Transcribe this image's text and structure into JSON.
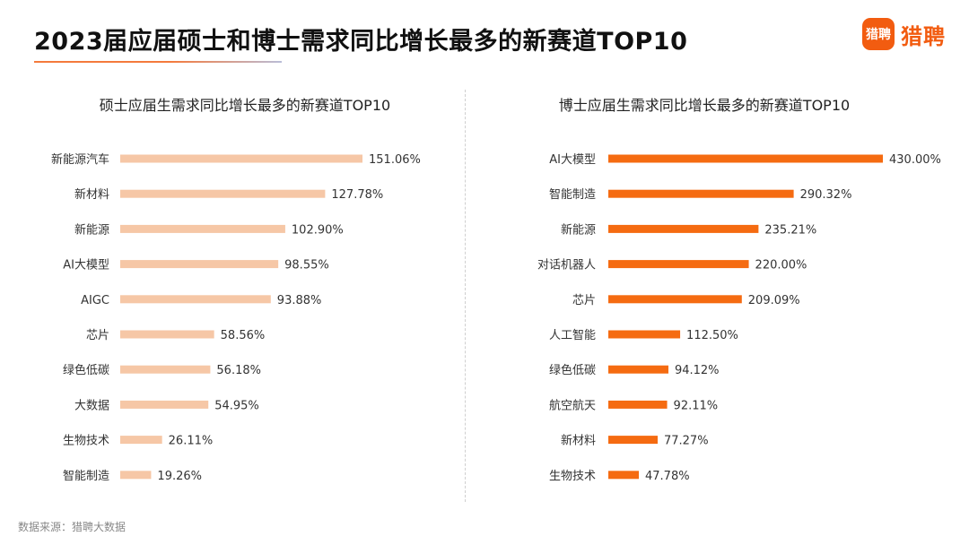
{
  "title": "2023届应届硕士和博士需求同比增长最多的新赛道TOP10",
  "logo": {
    "mark": "猎聘",
    "text": "猎聘"
  },
  "source": "数据来源：猎聘大数据",
  "colors": {
    "master_bar": "#f6c7a6",
    "phd_bar": "#f56b11",
    "accent": "#f25c10"
  },
  "chart_data": [
    {
      "type": "bar",
      "orientation": "horizontal",
      "title": "硕士应届生需求同比增长最多的新赛道TOP10",
      "categories": [
        "新能源汽车",
        "新材料",
        "新能源",
        "AI大模型",
        "AIGC",
        "芯片",
        "绿色低碳",
        "大数据",
        "生物技术",
        "智能制造"
      ],
      "values": [
        151.06,
        127.78,
        102.9,
        98.55,
        93.88,
        58.56,
        56.18,
        54.95,
        26.11,
        19.26
      ],
      "labels": [
        "151.06%",
        "127.78%",
        "102.90%",
        "98.55%",
        "93.88%",
        "58.56%",
        "56.18%",
        "54.95%",
        "26.11%",
        "19.26%"
      ],
      "unit": "%",
      "xlim": [
        0,
        151.06
      ],
      "grid": false,
      "color": "#f6c7a6"
    },
    {
      "type": "bar",
      "orientation": "horizontal",
      "title": "博士应届生需求同比增长最多的新赛道TOP10",
      "categories": [
        "AI大模型",
        "智能制造",
        "新能源",
        "对话机器人",
        "芯片",
        "人工智能",
        "绿色低碳",
        "航空航天",
        "新材料",
        "生物技术"
      ],
      "values": [
        430.0,
        290.32,
        235.21,
        220.0,
        209.09,
        112.5,
        94.12,
        92.11,
        77.27,
        47.78
      ],
      "labels": [
        "430.00%",
        "290.32%",
        "235.21%",
        "220.00%",
        "209.09%",
        "112.50%",
        "94.12%",
        "92.11%",
        "77.27%",
        "47.78%"
      ],
      "unit": "%",
      "xlim": [
        0,
        430.0
      ],
      "grid": false,
      "color": "#f56b11"
    }
  ]
}
